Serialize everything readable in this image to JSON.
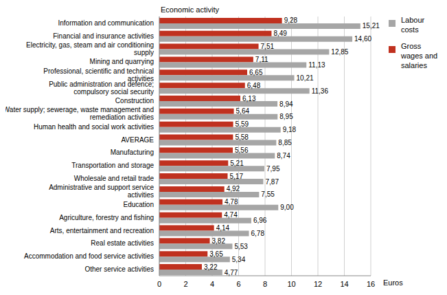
{
  "chart_data": {
    "type": "bar",
    "orientation": "horizontal",
    "y_label": "Economic activity",
    "x_label": "Euros",
    "categories": [
      "Information and communication",
      "Financial and insurance activities",
      "Electricity, gas, steam and air conditioning supply",
      "Mining and quarrying",
      "Professional, scientific and technical activities",
      "Public administration and defence; compulsory social security",
      "Construction",
      "Water supply; sewerage, waste management and remediation activities",
      "Human health and social work activities",
      "AVERAGE",
      "Manufacturing",
      "Transportation and storage",
      "Wholesale and retail trade",
      "Administrative and support service activities",
      "Education",
      "Agriculture, forestry and fishing",
      "Arts, entertainment and recreation",
      "Real estate activities",
      "Accommodation and food service activities",
      "Other service activities"
    ],
    "series": [
      {
        "name": "Labour costs",
        "color": "#a6a6a6",
        "values": [
          15.21,
          14.6,
          12.85,
          11.13,
          10.21,
          11.36,
          8.94,
          8.95,
          9.18,
          8.85,
          8.74,
          7.95,
          7.87,
          7.55,
          9.0,
          6.96,
          6.78,
          5.53,
          5.34,
          4.77
        ],
        "value_labels": [
          "15,21",
          "14,60",
          "12,85",
          "11,13",
          "10,21",
          "11,36",
          "8,94",
          "8,95",
          "9,18",
          "8,85",
          "8,74",
          "7,95",
          "7,87",
          "7,55",
          "9,00",
          "6,96",
          "6,78",
          "5,53",
          "5,34",
          "4,77"
        ]
      },
      {
        "name": "Gross wages and salaries",
        "color": "#c0311f",
        "values": [
          9.28,
          8.49,
          7.51,
          7.11,
          6.65,
          6.48,
          6.13,
          5.64,
          5.59,
          5.58,
          5.56,
          5.21,
          5.17,
          4.92,
          4.78,
          4.74,
          4.14,
          3.82,
          3.65,
          3.22
        ],
        "value_labels": [
          "9,28",
          "8,49",
          "7,51",
          "7,11",
          "6,65",
          "6,48",
          "6,13",
          "5,64",
          "5,59",
          "5,58",
          "5,56",
          "5,21",
          "5,17",
          "4,92",
          "4,78",
          "4,74",
          "4,14",
          "3,82",
          "3,65",
          "3,22"
        ]
      }
    ],
    "xlim": [
      0,
      16
    ],
    "xticks": [
      0,
      2,
      4,
      6,
      8,
      10,
      12,
      14,
      16
    ],
    "grid": true,
    "legend": "right",
    "data_labels": true
  }
}
